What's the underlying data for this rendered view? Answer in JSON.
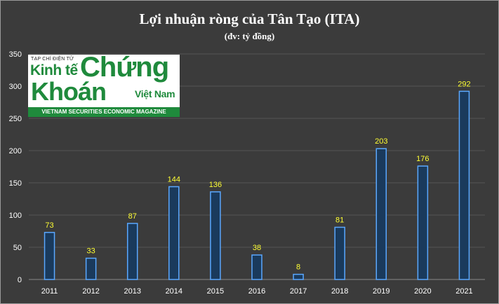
{
  "chart_data": {
    "type": "bar",
    "title": "Lợi nhuận ròng của Tân Tạo (ITA)",
    "subtitle": "(đv: tỷ đồng)",
    "categories": [
      "2011",
      "2012",
      "2013",
      "2014",
      "2015",
      "2016",
      "2017",
      "2018",
      "2019",
      "2020",
      "2021"
    ],
    "values": [
      73,
      33,
      87,
      144,
      136,
      38,
      8,
      81,
      203,
      176,
      292
    ],
    "ylim": [
      0,
      350
    ],
    "yticks": [
      "0",
      "50",
      "100",
      "150",
      "200",
      "250",
      "300",
      "350"
    ],
    "grid": true,
    "bar_color": "#1a3a5c",
    "bar_edge_color": "#5aa8ff",
    "data_label_color": "#ffff33",
    "background_color": "#3b3b3b"
  },
  "logo": {
    "line_top": "TẠP CHÍ ĐIỆN TỬ",
    "word_kinh_te": "Kinh tế",
    "word_chung": "Chứng",
    "word_khoan": "Khoán",
    "word_viet_nam": "Việt Nam",
    "band_text": "VIETNAM SECURITIES ECONOMIC MAGAZINE"
  }
}
